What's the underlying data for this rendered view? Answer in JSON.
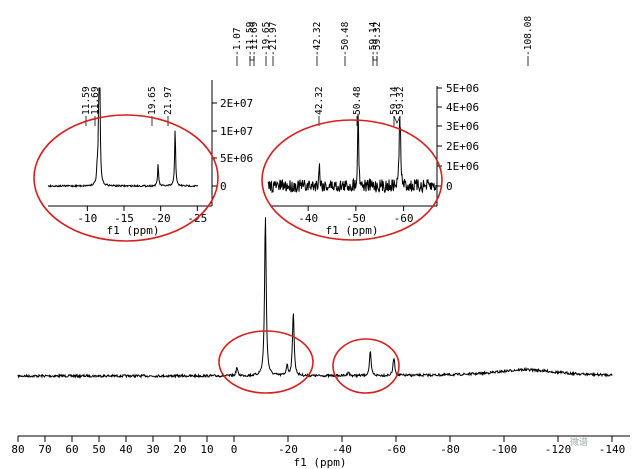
{
  "chart_data": [
    {
      "type": "line",
      "panel": "main-spectrum",
      "xlabel": "f1 (ppm)",
      "xlim": [
        80,
        -140
      ],
      "x_ticks": [
        "80",
        "70",
        "60",
        "50",
        "40",
        "30",
        "20",
        "10",
        "0",
        "-20",
        "-40",
        "-60",
        "-80",
        "-100",
        "-120",
        "-140"
      ],
      "peak_labels": [
        "-1.07",
        "-11.59",
        "-11.69",
        "-19.65",
        "-21.97",
        "-42.32",
        "-50.48",
        "-59.14",
        "-59.32",
        "-108.08"
      ],
      "peaks": [
        {
          "x": -1.07,
          "rel_height": 0.08
        },
        {
          "x": -11.59,
          "rel_height": 0.95
        },
        {
          "x": -11.69,
          "rel_height": 0.6
        },
        {
          "x": -19.65,
          "rel_height": 0.1
        },
        {
          "x": -21.97,
          "rel_height": 0.62
        },
        {
          "x": -42.32,
          "rel_height": 0.04
        },
        {
          "x": -50.48,
          "rel_height": 0.23
        },
        {
          "x": -59.14,
          "rel_height": 0.1
        },
        {
          "x": -59.32,
          "rel_height": 0.08
        },
        {
          "x": -108.08,
          "rel_height": 0.06,
          "broad": true
        }
      ],
      "highlight_regions": [
        [
          -3,
          -30
        ],
        [
          -39,
          -62
        ]
      ]
    },
    {
      "type": "line",
      "panel": "inset-left",
      "xlabel": "f1 (ppm)",
      "xlim": [
        -6,
        -27
      ],
      "ylim": [
        -5000000.0,
        25000000.0
      ],
      "x_ticks": [
        "-10",
        "-15",
        "-20",
        "-25"
      ],
      "y_ticks": [
        "0",
        "5E+06",
        "1E+07",
        "2E+07"
      ],
      "peak_labels": [
        "11.59",
        "11.69",
        "19.65",
        "21.97"
      ],
      "peaks": [
        {
          "x": -11.35,
          "y": 4000000.0
        },
        {
          "x": -11.59,
          "y": 24000000.0
        },
        {
          "x": -11.69,
          "y": 23000000.0
        },
        {
          "x": -19.65,
          "y": 5500000.0
        },
        {
          "x": -21.97,
          "y": 14500000.0
        }
      ]
    },
    {
      "type": "line",
      "panel": "inset-right",
      "xlabel": "f1 (ppm)",
      "xlim": [
        -32,
        -67
      ],
      "ylim": [
        -500000.0,
        5200000.0
      ],
      "x_ticks": [
        "-40",
        "-50",
        "-60"
      ],
      "y_ticks": [
        "0",
        "1E+06",
        "2E+06",
        "3E+06",
        "4E+06",
        "5E+06"
      ],
      "peak_labels": [
        "42.32",
        "50.48",
        "59.14",
        "59.32"
      ],
      "peaks": [
        {
          "x": -42.32,
          "y": 1200000.0
        },
        {
          "x": -50.48,
          "y": 4100000.0
        },
        {
          "x": -59.14,
          "y": 2700000.0
        },
        {
          "x": -59.32,
          "y": 2200000.0
        }
      ]
    }
  ],
  "colors": {
    "line": "#000000",
    "highlight": "#d61f1f"
  },
  "watermark": "微谱"
}
